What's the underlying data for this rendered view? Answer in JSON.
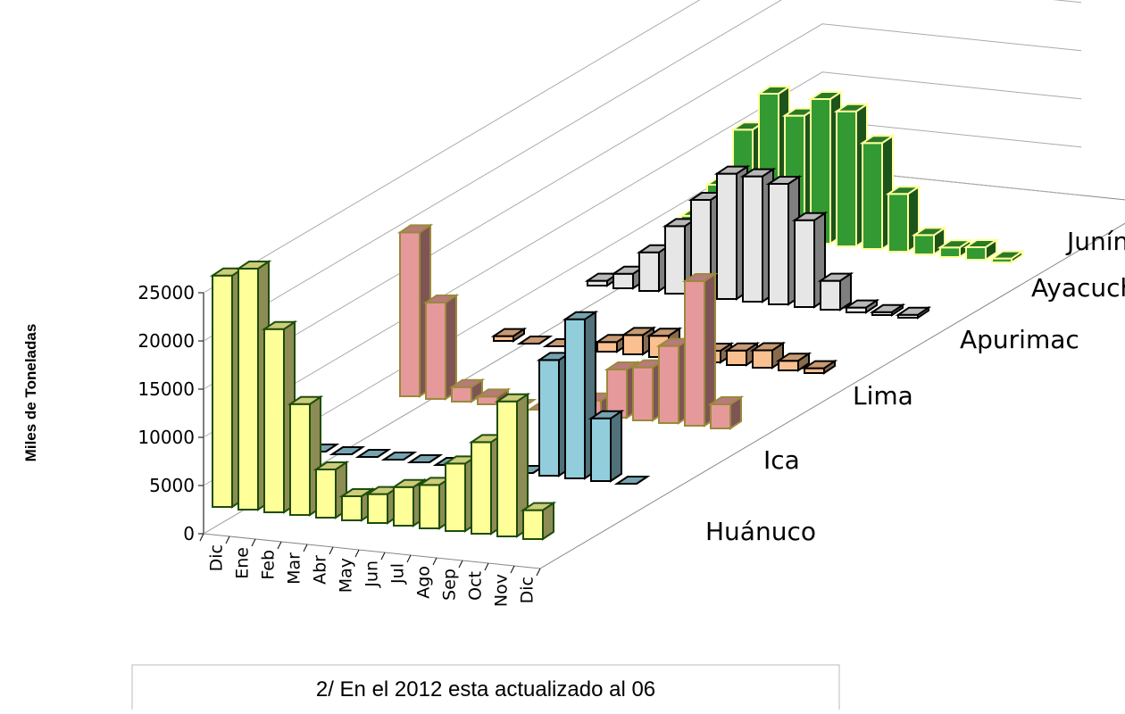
{
  "chart_data": {
    "type": "bar3d",
    "y_label": "Miles de Toneladas",
    "categories": [
      "Dic",
      "Ene",
      "Feb",
      "Mar",
      "Abr",
      "May",
      "Jun",
      "Jul",
      "Ago",
      "Sep",
      "Oct",
      "Nov",
      "Dic"
    ],
    "series": [
      {
        "name": "Huánuco",
        "color": "#ffff99",
        "values": [
          24000,
          25000,
          19000,
          11500,
          5000,
          2500,
          3000,
          4000,
          4500,
          7000,
          9500,
          14000,
          3000
        ]
      },
      {
        "name": "Ica",
        "color": "#92cddc",
        "values": [
          0,
          0,
          0,
          0,
          0,
          0,
          0,
          0,
          0,
          12000,
          16500,
          6500,
          0
        ]
      },
      {
        "name": "Lima",
        "color": "#e6999b",
        "values": [
          17000,
          10000,
          1500,
          800,
          0,
          0,
          0,
          1500,
          5000,
          5500,
          8000,
          15000,
          2500
        ]
      },
      {
        "name": "Apurimac",
        "color": "#fac090",
        "values": [
          500,
          0,
          0,
          0,
          1000,
          2000,
          2200,
          1500,
          1200,
          1500,
          1800,
          1000,
          500
        ]
      },
      {
        "name": "Ayacucho",
        "color": "#e6e6e6",
        "values": [
          500,
          1500,
          4000,
          7000,
          10000,
          13000,
          13000,
          12500,
          9000,
          3000,
          500,
          300,
          300
        ]
      },
      {
        "name": "Junín",
        "color": "#339933",
        "values": [
          1500,
          5000,
          11000,
          15000,
          13000,
          15000,
          14000,
          11000,
          6000,
          2000,
          1000,
          1300,
          400
        ]
      }
    ],
    "ylim": [
      0,
      25000
    ],
    "yticks": [
      0,
      5000,
      10000,
      15000,
      20000,
      25000
    ],
    "grid": true,
    "note": "2/  En el 2012   esta actualizado al 06"
  }
}
